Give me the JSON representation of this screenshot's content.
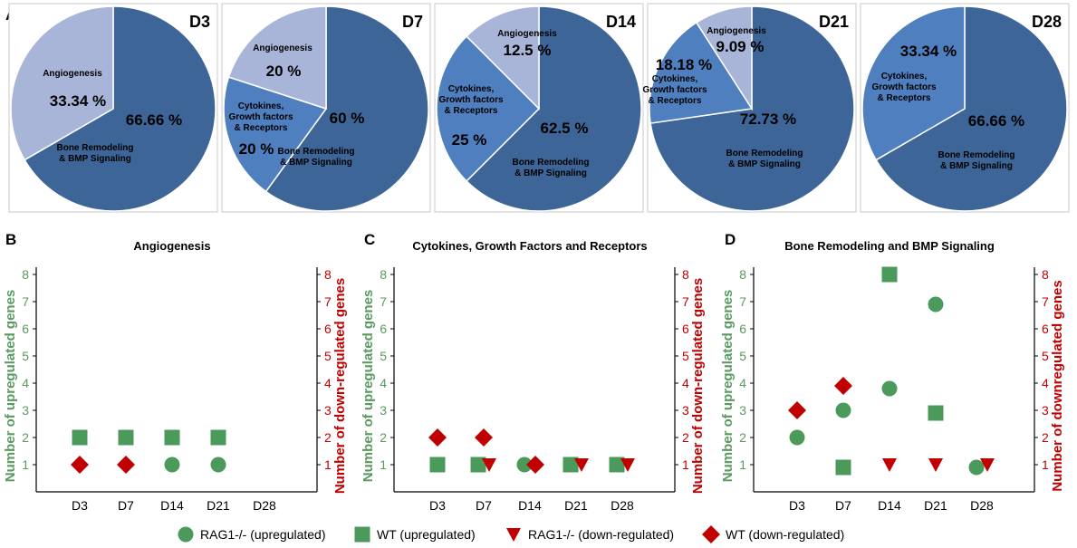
{
  "colors": {
    "dark_blue": "#3d6597",
    "mid_blue": "#4f7fbf",
    "light_blue": "#a9b5d8",
    "green": "#4b9a5b",
    "red": "#c00000",
    "green_axis": "#5a9a5e",
    "red_axis": "#c00000"
  },
  "panel_labels": {
    "a": "A",
    "b": "B",
    "c": "C",
    "d": "D"
  },
  "chart_data": [
    {
      "type": "pie",
      "panel": "A",
      "title": "D3",
      "slices": [
        {
          "name_lines": [
            "Bone Remodeling",
            "& BMP Signaling"
          ],
          "percent": 66.66,
          "label": "66.66 %",
          "color": "dark_blue"
        },
        {
          "name_lines": [
            "Angiogenesis"
          ],
          "percent": 33.34,
          "label": "33.34 %",
          "color": "light_blue"
        }
      ]
    },
    {
      "type": "pie",
      "panel": "A",
      "title": "D7",
      "slices": [
        {
          "name_lines": [
            "Bone Remodeling",
            "& BMP Signaling"
          ],
          "percent": 60,
          "label": "60 %",
          "color": "dark_blue"
        },
        {
          "name_lines": [
            "Cytokines,",
            "Growth factors",
            "& Receptors"
          ],
          "percent": 20,
          "label": "20 %",
          "color": "mid_blue"
        },
        {
          "name_lines": [
            "Angiogenesis"
          ],
          "percent": 20,
          "label": "20 %",
          "color": "light_blue"
        }
      ]
    },
    {
      "type": "pie",
      "panel": "A",
      "title": "D14",
      "slices": [
        {
          "name_lines": [
            "Bone Remodeling",
            "& BMP Signaling"
          ],
          "percent": 62.5,
          "label": "62.5 %",
          "color": "dark_blue"
        },
        {
          "name_lines": [
            "Cytokines,",
            "Growth factors",
            "& Receptors"
          ],
          "percent": 25,
          "label": "25 %",
          "color": "mid_blue"
        },
        {
          "name_lines": [
            "Angiogenesis"
          ],
          "percent": 12.5,
          "label": "12.5 %",
          "color": "light_blue"
        }
      ]
    },
    {
      "type": "pie",
      "panel": "A",
      "title": "D21",
      "slices": [
        {
          "name_lines": [
            "Bone Remodeling",
            "& BMP Signaling"
          ],
          "percent": 72.73,
          "label": "72.73 %",
          "color": "dark_blue"
        },
        {
          "name_lines": [
            "Cytokines,",
            "Growth factors",
            "& Receptors"
          ],
          "percent": 18.18,
          "label": "18.18 %",
          "color": "mid_blue"
        },
        {
          "name_lines": [
            "Angiogenesis"
          ],
          "percent": 9.09,
          "label": "9.09 %",
          "color": "light_blue"
        }
      ]
    },
    {
      "type": "pie",
      "panel": "A",
      "title": "D28",
      "slices": [
        {
          "name_lines": [
            "Bone Remodeling",
            "& BMP Signaling"
          ],
          "percent": 66.66,
          "label": "66.66 %",
          "color": "dark_blue"
        },
        {
          "name_lines": [
            "Cytokines,",
            "Growth factors",
            "& Receptors"
          ],
          "percent": 33.34,
          "label": "33.34 %",
          "color": "mid_blue"
        }
      ]
    },
    {
      "type": "scatter",
      "panel": "B",
      "title": "Angiogenesis",
      "categories": [
        "D3",
        "D7",
        "D14",
        "D21",
        "D28"
      ],
      "ylabel_left": "Number of upregulated genes",
      "ylabel_right": "Number of down-regulated genes",
      "ylim": [
        0,
        8
      ],
      "yticks": [
        "1",
        "2",
        "3",
        "4",
        "5",
        "6",
        "7",
        "8"
      ],
      "series": [
        {
          "name": "RAG1-/- (upregulated)",
          "marker": "circle",
          "color": "green",
          "points": [
            [
              "D14",
              1
            ],
            [
              "D21",
              1
            ]
          ]
        },
        {
          "name": "WT (upregulated)",
          "marker": "square",
          "color": "green",
          "points": [
            [
              "D3",
              2
            ],
            [
              "D7",
              2
            ],
            [
              "D14",
              2
            ],
            [
              "D21",
              2
            ]
          ]
        },
        {
          "name": "RAG1-/- (down-regulated)",
          "marker": "triangle",
          "color": "red",
          "points": []
        },
        {
          "name": "WT (down-regulated)",
          "marker": "diamond",
          "color": "red",
          "points": [
            [
              "D3",
              1
            ],
            [
              "D7",
              1
            ]
          ]
        }
      ]
    },
    {
      "type": "scatter",
      "panel": "C",
      "title": "Cytokines, Growth Factors and Receptors",
      "categories": [
        "D3",
        "D7",
        "D14",
        "D21",
        "D28"
      ],
      "ylabel_left": "Number of upregulated genes",
      "ylabel_right": "Number of down-regulated genes",
      "ylim": [
        0,
        8
      ],
      "yticks": [
        "1",
        "2",
        "3",
        "4",
        "5",
        "6",
        "7",
        "8"
      ],
      "series": [
        {
          "name": "RAG1-/- (upregulated)",
          "marker": "circle",
          "color": "green",
          "points": [
            [
              "D14",
              1
            ]
          ]
        },
        {
          "name": "WT (upregulated)",
          "marker": "square",
          "color": "green",
          "points": [
            [
              "D3",
              1
            ],
            [
              "D7",
              1
            ],
            [
              "D21",
              1
            ],
            [
              "D28",
              1
            ]
          ]
        },
        {
          "name": "RAG1-/- (down-regulated)",
          "marker": "triangle",
          "color": "red",
          "points": [
            [
              "D7",
              1
            ],
            [
              "D21",
              1
            ],
            [
              "D28",
              1
            ]
          ]
        },
        {
          "name": "WT (down-regulated)",
          "marker": "diamond",
          "color": "red",
          "points": [
            [
              "D3",
              2
            ],
            [
              "D7",
              2
            ],
            [
              "D14",
              1
            ]
          ]
        }
      ]
    },
    {
      "type": "scatter",
      "panel": "D",
      "title": "Bone Remodeling and BMP Signaling",
      "categories": [
        "D3",
        "D7",
        "D14",
        "D21",
        "D28"
      ],
      "ylabel_left": "Number of upregulated genes",
      "ylabel_right": "Number of downregulated genes",
      "ylim": [
        0,
        8
      ],
      "yticks": [
        "1",
        "2",
        "3",
        "4",
        "5",
        "6",
        "7",
        "8"
      ],
      "series": [
        {
          "name": "RAG1-/- (upregulated)",
          "marker": "circle",
          "color": "green",
          "points": [
            [
              "D3",
              2
            ],
            [
              "D7",
              3
            ],
            [
              "D14",
              3.8
            ],
            [
              "D21",
              6.9
            ],
            [
              "D28",
              0.9
            ]
          ]
        },
        {
          "name": "WT (upregulated)",
          "marker": "square",
          "color": "green",
          "points": [
            [
              "D7",
              0.9
            ],
            [
              "D14",
              8
            ],
            [
              "D21",
              2.9
            ]
          ]
        },
        {
          "name": "RAG1-/- (down-regulated)",
          "marker": "triangle",
          "color": "red",
          "points": [
            [
              "D14",
              1
            ],
            [
              "D21",
              1
            ],
            [
              "D28",
              1
            ]
          ]
        },
        {
          "name": "WT (down-regulated)",
          "marker": "diamond",
          "color": "red",
          "points": [
            [
              "D3",
              3
            ],
            [
              "D7",
              3.9
            ]
          ]
        }
      ]
    }
  ],
  "legend": [
    {
      "label": "RAG1-/- (upregulated)",
      "marker": "circle",
      "color": "green"
    },
    {
      "label": "WT (upregulated)",
      "marker": "square",
      "color": "green"
    },
    {
      "label": "RAG1-/- (down-regulated)",
      "marker": "triangle",
      "color": "red"
    },
    {
      "label": "WT (down-regulated)",
      "marker": "diamond",
      "color": "red"
    }
  ]
}
